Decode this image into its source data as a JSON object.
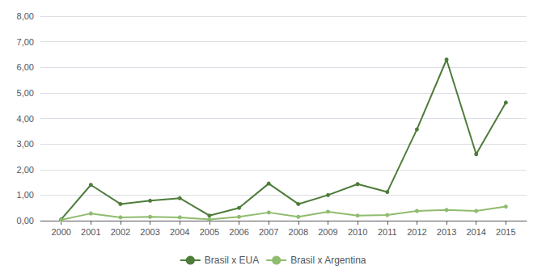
{
  "chart_data": {
    "type": "line",
    "x": [
      2000,
      2001,
      2002,
      2003,
      2004,
      2005,
      2006,
      2007,
      2008,
      2009,
      2010,
      2011,
      2012,
      2013,
      2014,
      2015
    ],
    "series": [
      {
        "name": "Brasil x EUA",
        "color": "#4e7c3a",
        "marker": "circle",
        "values": [
          0.05,
          1.4,
          0.65,
          0.78,
          0.88,
          0.2,
          0.5,
          1.45,
          0.65,
          1.0,
          1.43,
          1.12,
          3.57,
          6.3,
          2.6,
          4.62
        ]
      },
      {
        "name": "Brasil x Argentina",
        "color": "#8fbc6e",
        "marker": "circle",
        "values": [
          0.03,
          0.28,
          0.13,
          0.15,
          0.13,
          0.05,
          0.15,
          0.32,
          0.15,
          0.35,
          0.2,
          0.22,
          0.38,
          0.42,
          0.38,
          0.55
        ]
      }
    ],
    "xlim": [
      1999.3,
      2015.7
    ],
    "xticks": [
      2000,
      2001,
      2002,
      2003,
      2004,
      2005,
      2006,
      2007,
      2008,
      2009,
      2010,
      2011,
      2012,
      2013,
      2014,
      2015
    ],
    "ylim": [
      0,
      8.0
    ],
    "yticks": [
      {
        "value": 0.0,
        "label": "0,00"
      },
      {
        "value": 1.0,
        "label": "1,00"
      },
      {
        "value": 2.0,
        "label": "2,00"
      },
      {
        "value": 3.0,
        "label": "3,00"
      },
      {
        "value": 4.0,
        "label": "4,00"
      },
      {
        "value": 5.0,
        "label": "5,00"
      },
      {
        "value": 6.0,
        "label": "6,00"
      },
      {
        "value": 7.0,
        "label": "7,00"
      },
      {
        "value": 8.0,
        "label": "8,00"
      }
    ],
    "grid": true,
    "legend": "bottom"
  }
}
